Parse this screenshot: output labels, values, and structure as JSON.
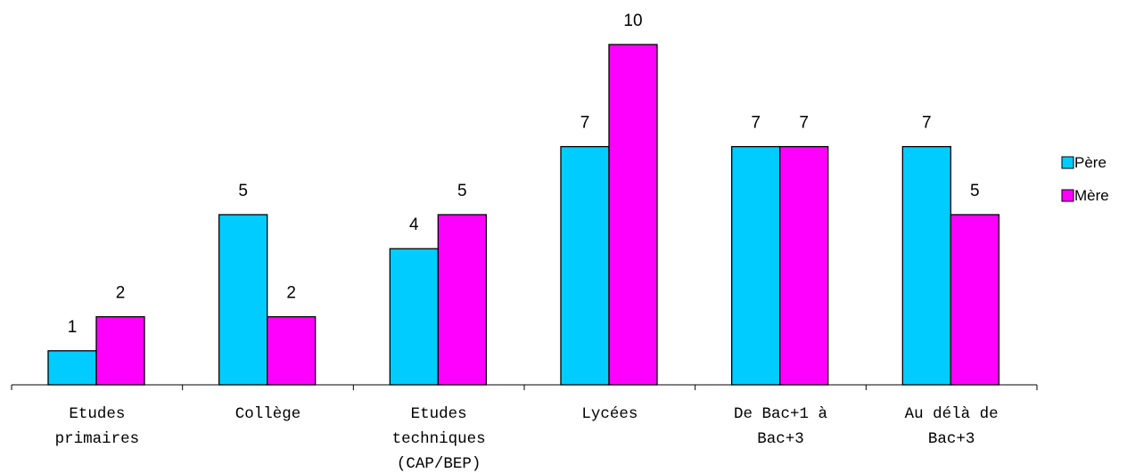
{
  "chart_data": {
    "type": "bar",
    "categories": [
      [
        "Etudes",
        "primaires"
      ],
      [
        "Collège"
      ],
      [
        "Etudes",
        "techniques",
        "(CAP/BEP)"
      ],
      [
        "Lycées"
      ],
      [
        "De Bac+1 à",
        "Bac+3"
      ],
      [
        "Au délà de",
        "Bac+3"
      ]
    ],
    "series": [
      {
        "name": "Père",
        "color": "#00CCFF",
        "values": [
          1,
          5,
          4,
          7,
          7,
          7
        ]
      },
      {
        "name": "Mère",
        "color": "#FF00FF",
        "values": [
          2,
          2,
          5,
          10,
          7,
          5
        ]
      }
    ],
    "ylim": [
      0,
      10
    ],
    "title": "",
    "xlabel": "",
    "ylabel": "",
    "grid": false,
    "legend": "right",
    "data_labels": true
  }
}
